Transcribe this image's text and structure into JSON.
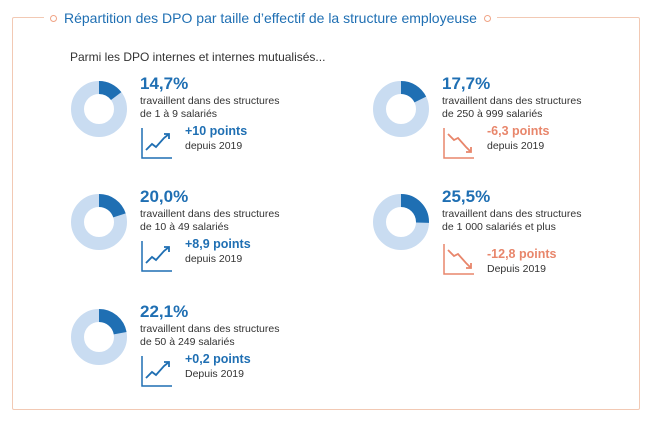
{
  "header": {
    "title": "Répartition des DPO par taille d’effectif de la structure employeuse",
    "subtitle": "Parmi les DPO internes et internes mutualisés..."
  },
  "colors": {
    "primary": "#1f6fb3",
    "ring": "#c9dcf1",
    "negative": "#e8866b",
    "border": "#f2c9b4"
  },
  "chart_data": {
    "type": "pie",
    "title": "Répartition des DPO par taille d’effectif de la structure employeuse",
    "series": [
      {
        "name": "1 à 9 salariés",
        "pct_label": "14,7%",
        "value": 14.7,
        "desc_line1": "travaillent dans des structures",
        "desc_line2": "de 1 à 9 salariés",
        "delta_label": "+10 points",
        "delta": 10,
        "since": "depuis 2019",
        "trend": "up"
      },
      {
        "name": "10 à 49 salariés",
        "pct_label": "20,0%",
        "value": 20.0,
        "desc_line1": "travaillent dans des structures",
        "desc_line2": "de 10 à 49 salariés",
        "delta_label": "+8,9 points",
        "delta": 8.9,
        "since": "depuis 2019",
        "trend": "up"
      },
      {
        "name": "50 à 249 salariés",
        "pct_label": "22,1%",
        "value": 22.1,
        "desc_line1": "travaillent dans des structures",
        "desc_line2": "de 50 à 249 salariés",
        "delta_label": "+0,2 points",
        "delta": 0.2,
        "since": "Depuis 2019",
        "trend": "up"
      },
      {
        "name": "250 à 999 salariés",
        "pct_label": "17,7%",
        "value": 17.7,
        "desc_line1": "travaillent dans des structures",
        "desc_line2": "de 250 à 999 salariés",
        "delta_label": "-6,3 points",
        "delta": -6.3,
        "since": "depuis 2019",
        "trend": "down"
      },
      {
        "name": "1 000 salariés et plus",
        "pct_label": "25,5%",
        "value": 25.5,
        "desc_line1": "travaillent dans des structures",
        "desc_line2": "de 1 000 salariés et plus",
        "delta_label": "-12,8 points",
        "delta": -12.8,
        "since": "Depuis 2019",
        "trend": "down"
      }
    ]
  }
}
